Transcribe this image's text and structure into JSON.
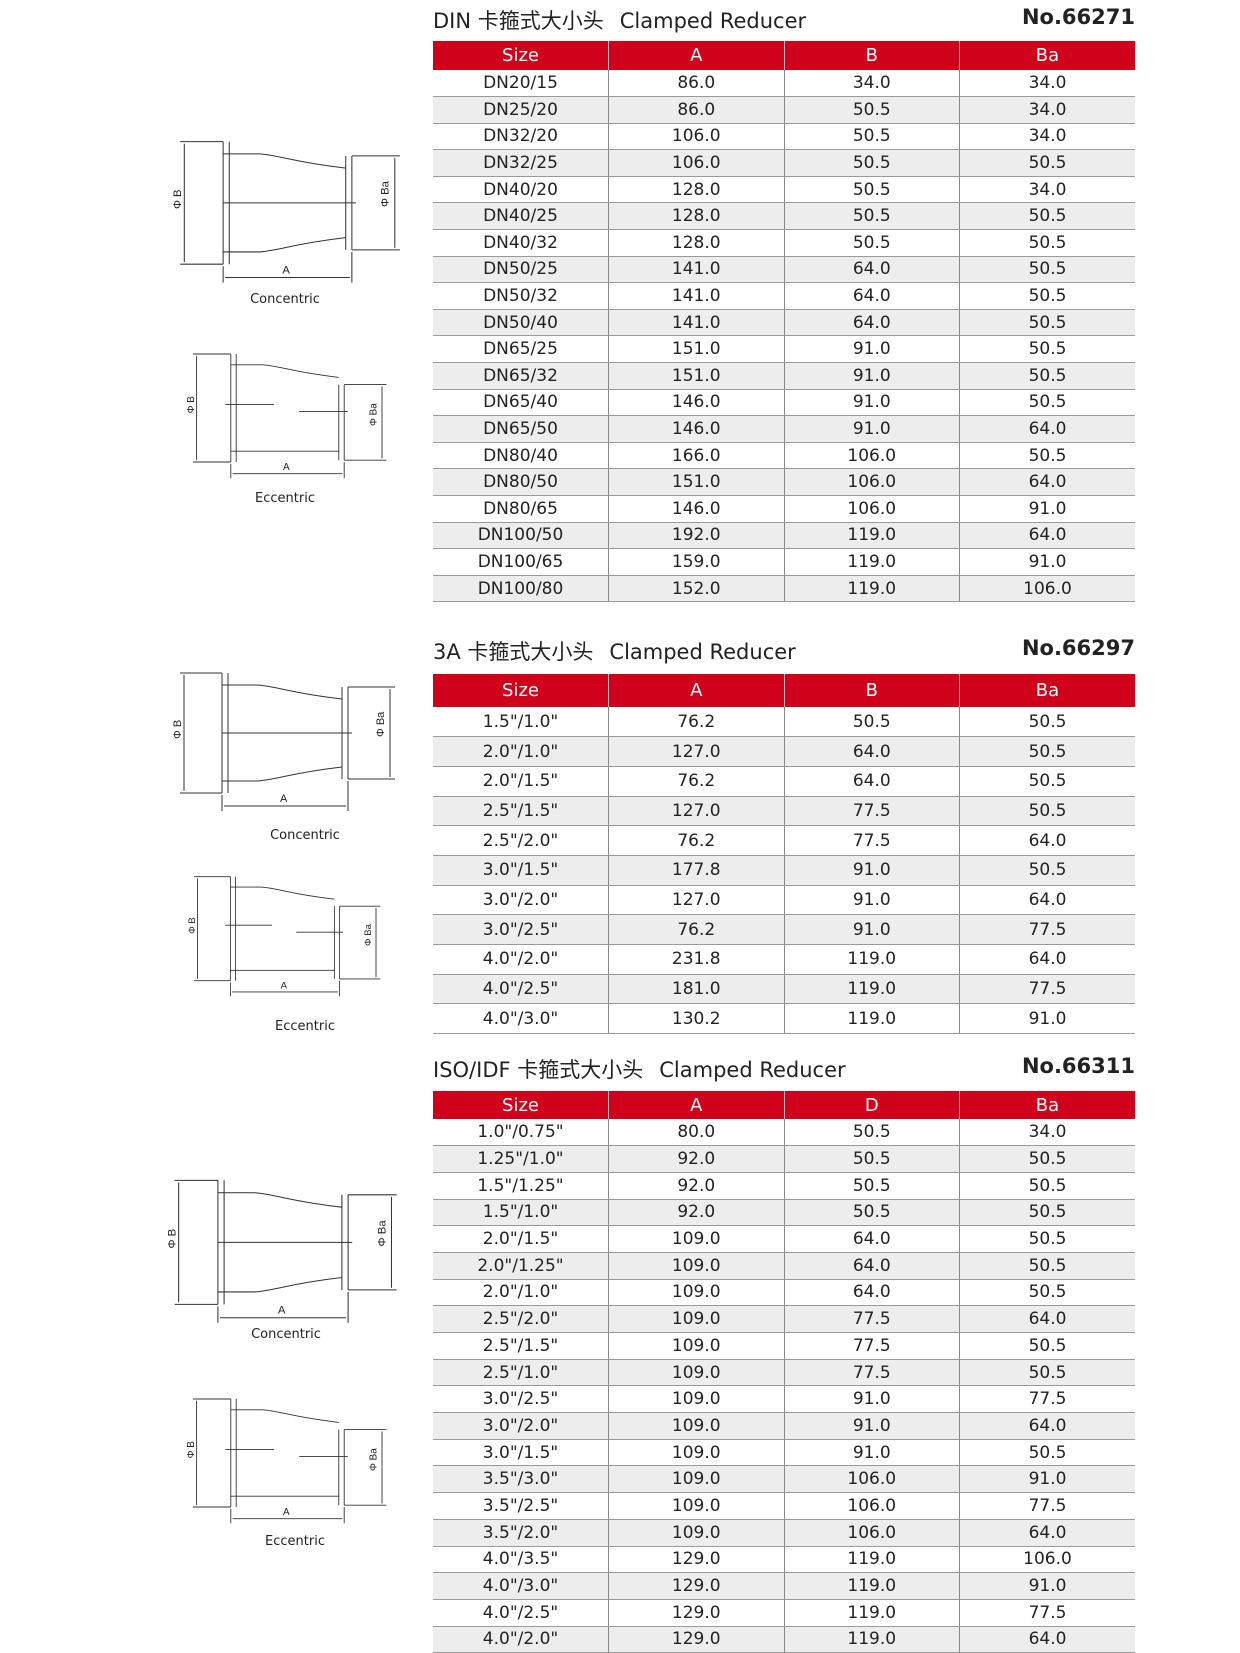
{
  "drawing_labels": {
    "b": "Φ B",
    "ba": "Φ Ba",
    "a": "A",
    "concentric": "Concentric",
    "eccentric": "Eccentric"
  },
  "sections": [
    {
      "title_prefix": "DIN 卡箍式大小头",
      "title_en": "Clamped Reducer",
      "number": "No.66271",
      "headers": [
        "Size",
        "A",
        "B",
        "Ba"
      ],
      "rows": [
        [
          "DN20/15",
          "86.0",
          "34.0",
          "34.0"
        ],
        [
          "DN25/20",
          "86.0",
          "50.5",
          "34.0"
        ],
        [
          "DN32/20",
          "106.0",
          "50.5",
          "34.0"
        ],
        [
          "DN32/25",
          "106.0",
          "50.5",
          "50.5"
        ],
        [
          "DN40/20",
          "128.0",
          "50.5",
          "34.0"
        ],
        [
          "DN40/25",
          "128.0",
          "50.5",
          "50.5"
        ],
        [
          "DN40/32",
          "128.0",
          "50.5",
          "50.5"
        ],
        [
          "DN50/25",
          "141.0",
          "64.0",
          "50.5"
        ],
        [
          "DN50/32",
          "141.0",
          "64.0",
          "50.5"
        ],
        [
          "DN50/40",
          "141.0",
          "64.0",
          "50.5"
        ],
        [
          "DN65/25",
          "151.0",
          "91.0",
          "50.5"
        ],
        [
          "DN65/32",
          "151.0",
          "91.0",
          "50.5"
        ],
        [
          "DN65/40",
          "146.0",
          "91.0",
          "50.5"
        ],
        [
          "DN65/50",
          "146.0",
          "91.0",
          "64.0"
        ],
        [
          "DN80/40",
          "166.0",
          "106.0",
          "50.5"
        ],
        [
          "DN80/50",
          "151.0",
          "106.0",
          "64.0"
        ],
        [
          "DN80/65",
          "146.0",
          "106.0",
          "91.0"
        ],
        [
          "DN100/50",
          "192.0",
          "119.0",
          "64.0"
        ],
        [
          "DN100/65",
          "159.0",
          "119.0",
          "91.0"
        ],
        [
          "DN100/80",
          "152.0",
          "119.0",
          "106.0"
        ]
      ]
    },
    {
      "title_prefix": "3A 卡箍式大小头",
      "title_en": "Clamped Reducer",
      "number": "No.66297",
      "headers": [
        "Size",
        "A",
        "B",
        "Ba"
      ],
      "rows": [
        [
          "1.5\"/1.0\"",
          "76.2",
          "50.5",
          "50.5"
        ],
        [
          "2.0\"/1.0\"",
          "127.0",
          "64.0",
          "50.5"
        ],
        [
          "2.0\"/1.5\"",
          "76.2",
          "64.0",
          "50.5"
        ],
        [
          "2.5\"/1.5\"",
          "127.0",
          "77.5",
          "50.5"
        ],
        [
          "2.5\"/2.0\"",
          "76.2",
          "77.5",
          "64.0"
        ],
        [
          "3.0\"/1.5\"",
          "177.8",
          "91.0",
          "50.5"
        ],
        [
          "3.0\"/2.0\"",
          "127.0",
          "91.0",
          "64.0"
        ],
        [
          "3.0\"/2.5\"",
          "76.2",
          "91.0",
          "77.5"
        ],
        [
          "4.0\"/2.0\"",
          "231.8",
          "119.0",
          "64.0"
        ],
        [
          "4.0\"/2.5\"",
          "181.0",
          "119.0",
          "77.5"
        ],
        [
          "4.0\"/3.0\"",
          "130.2",
          "119.0",
          "91.0"
        ]
      ]
    },
    {
      "title_prefix": "ISO/IDF 卡箍式大小头",
      "title_en": "Clamped Reducer",
      "number": "No.66311",
      "headers": [
        "Size",
        "A",
        "D",
        "Ba"
      ],
      "rows": [
        [
          "1.0\"/0.75\"",
          "80.0",
          "50.5",
          "34.0"
        ],
        [
          "1.25\"/1.0\"",
          "92.0",
          "50.5",
          "50.5"
        ],
        [
          "1.5\"/1.25\"",
          "92.0",
          "50.5",
          "50.5"
        ],
        [
          "1.5\"/1.0\"",
          "92.0",
          "50.5",
          "50.5"
        ],
        [
          "2.0\"/1.5\"",
          "109.0",
          "64.0",
          "50.5"
        ],
        [
          "2.0\"/1.25\"",
          "109.0",
          "64.0",
          "50.5"
        ],
        [
          "2.0\"/1.0\"",
          "109.0",
          "64.0",
          "50.5"
        ],
        [
          "2.5\"/2.0\"",
          "109.0",
          "77.5",
          "64.0"
        ],
        [
          "2.5\"/1.5\"",
          "109.0",
          "77.5",
          "50.5"
        ],
        [
          "2.5\"/1.0\"",
          "109.0",
          "77.5",
          "50.5"
        ],
        [
          "3.0\"/2.5\"",
          "109.0",
          "91.0",
          "77.5"
        ],
        [
          "3.0\"/2.0\"",
          "109.0",
          "91.0",
          "64.0"
        ],
        [
          "3.0\"/1.5\"",
          "109.0",
          "91.0",
          "50.5"
        ],
        [
          "3.5\"/3.0\"",
          "109.0",
          "106.0",
          "91.0"
        ],
        [
          "3.5\"/2.5\"",
          "109.0",
          "106.0",
          "77.5"
        ],
        [
          "3.5\"/2.0\"",
          "109.0",
          "106.0",
          "64.0"
        ],
        [
          "4.0\"/3.5\"",
          "129.0",
          "119.0",
          "106.0"
        ],
        [
          "4.0\"/3.0\"",
          "129.0",
          "119.0",
          "91.0"
        ],
        [
          "4.0\"/2.5\"",
          "129.0",
          "119.0",
          "77.5"
        ],
        [
          "4.0\"/2.0\"",
          "129.0",
          "119.0",
          "64.0"
        ]
      ]
    }
  ]
}
